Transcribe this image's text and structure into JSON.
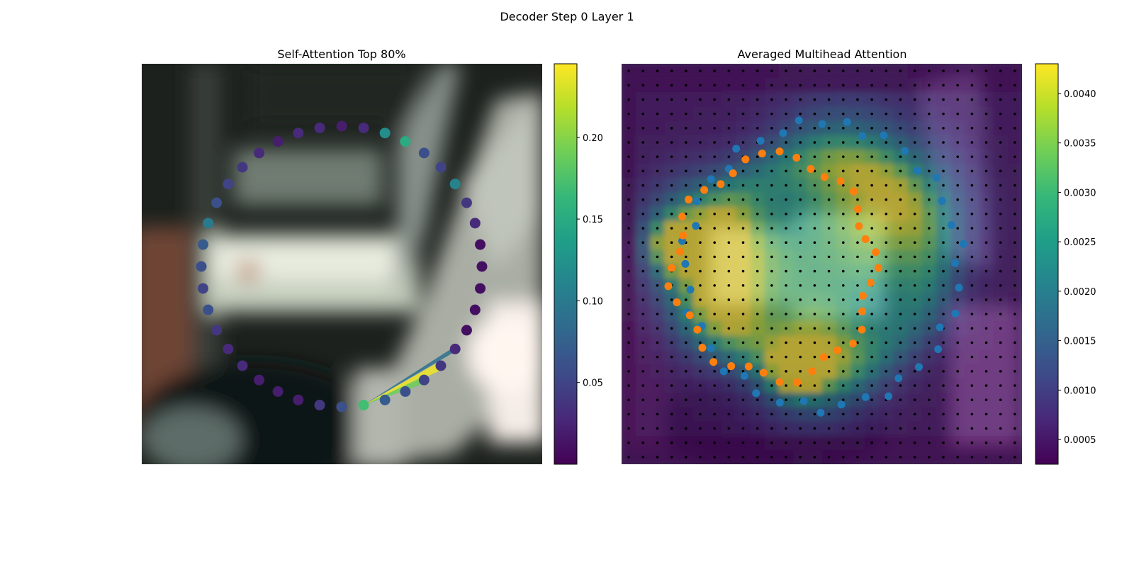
{
  "figure_title": "Decoder Step 0 Layer 1",
  "colors": {
    "viridis": [
      "#440154",
      "#482878",
      "#3e4a89",
      "#31688e",
      "#26828e",
      "#1f9e89",
      "#35b779",
      "#6ece58",
      "#b5de2b",
      "#fde725"
    ],
    "blue_points": "#1f77b4",
    "orange_points": "#ff7f0e",
    "grid_dots": "#000000"
  },
  "chart_data": [
    {
      "type": "scatter",
      "title": "Self-Attention Top 80%",
      "background": "blurred camera image (vehicle interior / street scene)",
      "colormap": "viridis",
      "colorbar": {
        "range": [
          0.0,
          0.245
        ],
        "ticks": [
          "0.05",
          "0.10",
          "0.15",
          "0.20"
        ]
      },
      "points_angle_order": "ring of 40 points, starting at top going clockwise",
      "point_values": [
        0.02,
        0.03,
        0.12,
        0.15,
        0.06,
        0.05,
        0.11,
        0.04,
        0.03,
        0.01,
        0.01,
        0.01,
        0.01,
        0.01,
        0.03,
        0.04,
        0.05,
        0.06,
        0.07,
        0.17,
        0.06,
        0.04,
        0.02,
        0.02,
        0.02,
        0.03,
        0.03,
        0.04,
        0.06,
        0.05,
        0.06,
        0.07,
        0.1,
        0.06,
        0.05,
        0.04,
        0.03,
        0.02,
        0.03,
        0.03
      ],
      "attention_edges": [
        {
          "from": 19,
          "to": 15,
          "weight": 0.24
        },
        {
          "from": 19,
          "to": 16,
          "weight": 0.19
        },
        {
          "from": 19,
          "to": 14,
          "weight": 0.09
        }
      ]
    },
    {
      "type": "heatmap",
      "title": "Averaged Multihead Attention",
      "colormap": "viridis",
      "grid_size": [
        28,
        28
      ],
      "colorbar": {
        "range": [
          0.00025,
          0.0043
        ],
        "ticks": [
          "0.0005",
          "0.0010",
          "0.0015",
          "0.0020",
          "0.0025",
          "0.0030",
          "0.0035",
          "0.0040"
        ]
      },
      "series": [
        {
          "color": "#1f77b4",
          "description": "outer ring of reference points"
        },
        {
          "color": "#ff7f0e",
          "description": "inner ring of sampling points"
        }
      ]
    }
  ]
}
